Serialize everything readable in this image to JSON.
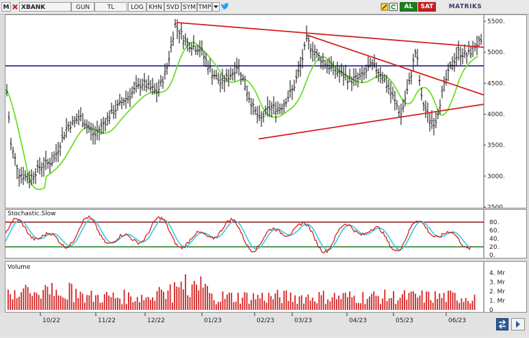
{
  "toolbar": {
    "menu_label": "M",
    "symbol": "XBANK",
    "buttons": [
      "GUN",
      "TL",
      "LOG",
      "KHN",
      "SVD",
      "SYM",
      "TMP"
    ],
    "al_label": "AL",
    "sat_label": "SAT",
    "brand": "MATRIKS",
    "icons": [
      "dropdown-arrow-icon",
      "twitter-icon",
      "pencil-icon",
      "refresh-icon",
      "close-icon"
    ]
  },
  "colors": {
    "accent_red": "#d42020",
    "ma_green": "#6fdc2a",
    "support_blue": "#1a1a9a",
    "stoch_cyan": "#38c8e8",
    "al_bg": "#1f7a1f",
    "sat_bg": "#c21e1e"
  },
  "price_panel": {
    "y_ticks": [
      "5500.",
      "5000.",
      "4500.",
      "4000.",
      "3500.",
      "3000.",
      "2500"
    ]
  },
  "stoch_panel": {
    "title": "Stochastic.Slow",
    "y_ticks": [
      "80.",
      "60.",
      "40.",
      "20.",
      "0."
    ]
  },
  "volume_panel": {
    "title": "Volume",
    "y_ticks": [
      "4. Mr",
      "3. Mr",
      "2. Mr",
      "1. Mr",
      "0"
    ]
  },
  "x_axis": {
    "labels": [
      "10/22",
      "11/22",
      "12/22",
      "01/23",
      "02/23",
      "03/23",
      "04/23",
      "05/23",
      "06/23"
    ]
  },
  "chart_data": {
    "type": "candlestick",
    "symbol": "XBANK",
    "ylim": [
      2500,
      5600
    ],
    "moving_average_color": "green",
    "horizontal_line": 4780,
    "trendlines": [
      {
        "from": [
          "12/22",
          5480
        ],
        "to": [
          "06/23",
          5080
        ]
      },
      {
        "from": [
          "03/23",
          5280
        ],
        "to": [
          "06/23",
          4310
        ]
      },
      {
        "from": [
          "02/23",
          3600
        ],
        "to": [
          "06/23",
          4160
        ]
      }
    ],
    "stochastic": {
      "ylim": [
        0,
        100
      ],
      "levels": [
        80,
        20
      ]
    },
    "volume": {
      "ylim": [
        0,
        4
      ],
      "unit": "Mr"
    }
  }
}
